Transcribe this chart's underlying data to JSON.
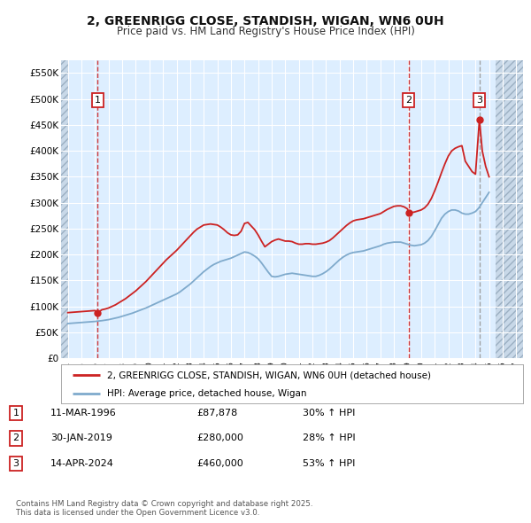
{
  "title_line1": "2, GREENRIGG CLOSE, STANDISH, WIGAN, WN6 0UH",
  "title_line2": "Price paid vs. HM Land Registry's House Price Index (HPI)",
  "ylim": [
    0,
    575000
  ],
  "yticks": [
    0,
    50000,
    100000,
    150000,
    200000,
    250000,
    300000,
    350000,
    400000,
    450000,
    500000,
    550000
  ],
  "ytick_labels": [
    "£0",
    "£50K",
    "£100K",
    "£150K",
    "£200K",
    "£250K",
    "£300K",
    "£350K",
    "£400K",
    "£450K",
    "£500K",
    "£550K"
  ],
  "xlim_start": 1993.5,
  "xlim_end": 2027.5,
  "xtick_years": [
    1994,
    1995,
    1996,
    1997,
    1998,
    1999,
    2000,
    2001,
    2002,
    2003,
    2004,
    2005,
    2006,
    2007,
    2008,
    2009,
    2010,
    2011,
    2012,
    2013,
    2014,
    2015,
    2016,
    2017,
    2018,
    2019,
    2020,
    2021,
    2022,
    2023,
    2024,
    2025,
    2026,
    2027
  ],
  "hpi_color": "#7faacc",
  "price_color": "#cc2222",
  "bg_color": "#ddeeff",
  "grid_color": "#ffffff",
  "sale_dates": [
    1996.19,
    2019.08,
    2024.29
  ],
  "sale_prices": [
    87878,
    280000,
    460000
  ],
  "sale_labels": [
    "1",
    "2",
    "3"
  ],
  "sale_line_colors": [
    "#cc2222",
    "#cc2222",
    "#999999"
  ],
  "legend_label_price": "2, GREENRIGG CLOSE, STANDISH, WIGAN, WN6 0UH (detached house)",
  "legend_label_hpi": "HPI: Average price, detached house, Wigan",
  "table_data": [
    [
      "1",
      "11-MAR-1996",
      "£87,878",
      "30% ↑ HPI"
    ],
    [
      "2",
      "30-JAN-2019",
      "£280,000",
      "28% ↑ HPI"
    ],
    [
      "3",
      "14-APR-2024",
      "£460,000",
      "53% ↑ HPI"
    ]
  ],
  "footer_text": "Contains HM Land Registry data © Crown copyright and database right 2025.\nThis data is licensed under the Open Government Licence v3.0.",
  "hpi_x": [
    1994.0,
    1994.25,
    1994.5,
    1994.75,
    1995.0,
    1995.25,
    1995.5,
    1995.75,
    1996.0,
    1996.25,
    1996.5,
    1996.75,
    1997.0,
    1997.25,
    1997.5,
    1997.75,
    1998.0,
    1998.25,
    1998.5,
    1998.75,
    1999.0,
    1999.25,
    1999.5,
    1999.75,
    2000.0,
    2000.25,
    2000.5,
    2000.75,
    2001.0,
    2001.25,
    2001.5,
    2001.75,
    2002.0,
    2002.25,
    2002.5,
    2002.75,
    2003.0,
    2003.25,
    2003.5,
    2003.75,
    2004.0,
    2004.25,
    2004.5,
    2004.75,
    2005.0,
    2005.25,
    2005.5,
    2005.75,
    2006.0,
    2006.25,
    2006.5,
    2006.75,
    2007.0,
    2007.25,
    2007.5,
    2007.75,
    2008.0,
    2008.25,
    2008.5,
    2008.75,
    2009.0,
    2009.25,
    2009.5,
    2009.75,
    2010.0,
    2010.25,
    2010.5,
    2010.75,
    2011.0,
    2011.25,
    2011.5,
    2011.75,
    2012.0,
    2012.25,
    2012.5,
    2012.75,
    2013.0,
    2013.25,
    2013.5,
    2013.75,
    2014.0,
    2014.25,
    2014.5,
    2014.75,
    2015.0,
    2015.25,
    2015.5,
    2015.75,
    2016.0,
    2016.25,
    2016.5,
    2016.75,
    2017.0,
    2017.25,
    2017.5,
    2017.75,
    2018.0,
    2018.25,
    2018.5,
    2018.75,
    2019.0,
    2019.25,
    2019.5,
    2019.75,
    2020.0,
    2020.25,
    2020.5,
    2020.75,
    2021.0,
    2021.25,
    2021.5,
    2021.75,
    2022.0,
    2022.25,
    2022.5,
    2022.75,
    2023.0,
    2023.25,
    2023.5,
    2023.75,
    2024.0,
    2024.25,
    2024.5,
    2024.75,
    2025.0
  ],
  "hpi_y": [
    67000,
    67500,
    68000,
    68500,
    69000,
    69500,
    70000,
    70500,
    71000,
    71800,
    72500,
    73500,
    74500,
    76000,
    77500,
    79000,
    81000,
    83000,
    85000,
    87000,
    89500,
    92000,
    94500,
    97000,
    100000,
    103000,
    106000,
    109000,
    112000,
    115000,
    118000,
    121000,
    124000,
    128000,
    133000,
    138000,
    143000,
    149000,
    155000,
    161000,
    167000,
    172000,
    177000,
    181000,
    184000,
    187000,
    189000,
    191000,
    193000,
    196000,
    199000,
    202000,
    205000,
    204000,
    201000,
    197000,
    192000,
    184000,
    175000,
    166000,
    158000,
    157000,
    158000,
    160000,
    162000,
    163000,
    164000,
    163000,
    162000,
    161000,
    160000,
    159000,
    158000,
    158000,
    160000,
    163000,
    167000,
    172000,
    178000,
    184000,
    190000,
    195000,
    199000,
    202000,
    204000,
    205000,
    206000,
    207000,
    209000,
    211000,
    213000,
    215000,
    217000,
    220000,
    222000,
    223000,
    224000,
    224000,
    224000,
    222000,
    220000,
    218000,
    217000,
    218000,
    219000,
    222000,
    227000,
    235000,
    246000,
    258000,
    270000,
    278000,
    283000,
    286000,
    286000,
    284000,
    280000,
    278000,
    278000,
    280000,
    283000,
    290000,
    300000,
    310000,
    320000
  ],
  "price_x": [
    1994.0,
    1994.25,
    1994.5,
    1994.75,
    1995.0,
    1995.25,
    1995.5,
    1995.75,
    1996.0,
    1996.19,
    1996.5,
    1996.75,
    1997.0,
    1997.25,
    1997.5,
    1997.75,
    1998.0,
    1998.25,
    1998.5,
    1998.75,
    1999.0,
    1999.25,
    1999.5,
    1999.75,
    2000.0,
    2000.25,
    2000.5,
    2000.75,
    2001.0,
    2001.25,
    2001.5,
    2001.75,
    2002.0,
    2002.25,
    2002.5,
    2002.75,
    2003.0,
    2003.25,
    2003.5,
    2003.75,
    2004.0,
    2004.25,
    2004.5,
    2004.75,
    2005.0,
    2005.25,
    2005.5,
    2005.75,
    2006.0,
    2006.25,
    2006.5,
    2006.75,
    2007.0,
    2007.25,
    2007.5,
    2007.75,
    2008.0,
    2008.25,
    2008.5,
    2008.75,
    2009.0,
    2009.25,
    2009.5,
    2009.75,
    2010.0,
    2010.25,
    2010.5,
    2010.75,
    2011.0,
    2011.25,
    2011.5,
    2011.75,
    2012.0,
    2012.25,
    2012.5,
    2012.75,
    2013.0,
    2013.25,
    2013.5,
    2013.75,
    2014.0,
    2014.25,
    2014.5,
    2014.75,
    2015.0,
    2015.25,
    2015.5,
    2015.75,
    2016.0,
    2016.25,
    2016.5,
    2016.75,
    2017.0,
    2017.25,
    2017.5,
    2017.75,
    2018.0,
    2018.25,
    2018.5,
    2018.75,
    2019.0,
    2019.08,
    2019.5,
    2019.75,
    2020.0,
    2020.25,
    2020.5,
    2020.75,
    2021.0,
    2021.25,
    2021.5,
    2021.75,
    2022.0,
    2022.25,
    2022.5,
    2022.75,
    2023.0,
    2023.25,
    2023.5,
    2023.75,
    2024.0,
    2024.29,
    2024.5,
    2024.75,
    2025.0
  ],
  "price_y": [
    88000,
    88500,
    89000,
    89500,
    90000,
    90500,
    91000,
    91500,
    92000,
    87878,
    93500,
    95000,
    97000,
    100000,
    103000,
    107000,
    111000,
    115000,
    120000,
    125000,
    130000,
    136000,
    142000,
    148000,
    155000,
    162000,
    169000,
    176000,
    183000,
    190000,
    196000,
    202000,
    208000,
    215000,
    222000,
    229000,
    236000,
    243000,
    249000,
    253000,
    257000,
    258000,
    259000,
    258000,
    257000,
    253000,
    248000,
    242000,
    238000,
    237000,
    238000,
    245000,
    260000,
    262000,
    255000,
    248000,
    238000,
    226000,
    215000,
    220000,
    225000,
    228000,
    230000,
    228000,
    226000,
    226000,
    225000,
    222000,
    220000,
    220000,
    221000,
    221000,
    220000,
    220000,
    221000,
    222000,
    224000,
    227000,
    232000,
    238000,
    244000,
    250000,
    256000,
    261000,
    265000,
    267000,
    268000,
    269000,
    271000,
    273000,
    275000,
    277000,
    279000,
    283000,
    287000,
    290000,
    293000,
    294000,
    294000,
    292000,
    288000,
    280000,
    282000,
    284000,
    286000,
    290000,
    297000,
    308000,
    323000,
    340000,
    358000,
    375000,
    390000,
    400000,
    405000,
    408000,
    410000,
    380000,
    370000,
    360000,
    355000,
    460000,
    400000,
    370000,
    350000
  ]
}
